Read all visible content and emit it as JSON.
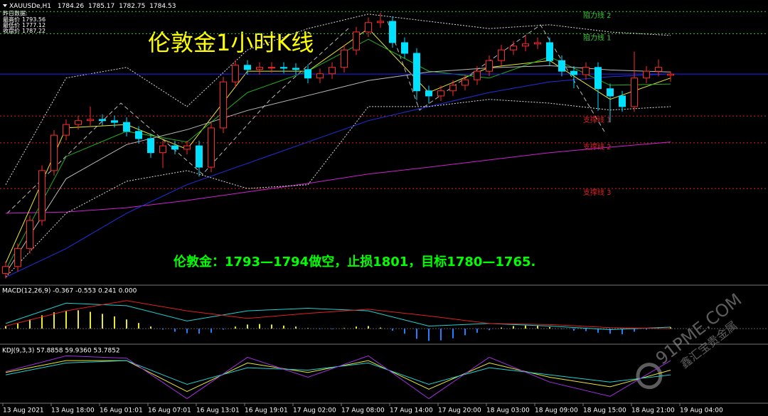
{
  "chart_data": {
    "type": "candlestick",
    "symbol": "XAUUSDe,H1",
    "title": "伦敦金1小时K线",
    "annotation": "伦敦金：1793—1794做空，止损1801，目标1780—1765.",
    "ylim": [
      1735.2,
      1801.9
    ],
    "up_color": "#ff2a2a",
    "down_color": "#00e0ff",
    "open": [
      1737.8,
      1739.4,
      1743.6,
      1750.2,
      1761.9,
      1770.2,
      1772.7,
      1773.6,
      1773.9,
      1773.6,
      1773.2,
      1771.1,
      1769.4,
      1766.1,
      1767.7,
      1766.9,
      1767.7,
      1762.7,
      1771.9,
      1782.7,
      1786.6,
      1785.6,
      1786.1,
      1786.1,
      1785.9,
      1785.6,
      1783.6,
      1784.6,
      1786.1,
      1790.2,
      1794.4,
      1796.6,
      1796.9,
      1791.9,
      1789.4,
      1780.6,
      1779.4,
      1780.6,
      1781.9,
      1783.2,
      1785.2,
      1787.7,
      1790.2,
      1791.1,
      1791.6,
      1791.9,
      1787.7,
      1785.2,
      1784.4,
      1786.1,
      1781.1,
      1779.4,
      1776.9,
      1783.6,
      1785.2,
      1784.26
    ],
    "high": [
      1740.6,
      1744.8,
      1751.4,
      1763.1,
      1771.4,
      1773.9,
      1774.8,
      1776.9,
      1775.1,
      1774.8,
      1774.4,
      1772.3,
      1770.6,
      1768.9,
      1768.9,
      1768.9,
      1768.9,
      1773.1,
      1783.9,
      1787.8,
      1787.8,
      1787.3,
      1787.3,
      1787.3,
      1787.1,
      1786.8,
      1785.8,
      1787.3,
      1791.4,
      1795.6,
      1797.8,
      1798.9,
      1798.1,
      1793.1,
      1790.6,
      1781.8,
      1781.8,
      1783.1,
      1784.4,
      1786.4,
      1788.9,
      1791.4,
      1792.3,
      1793.6,
      1793.1,
      1793.1,
      1788.9,
      1786.4,
      1787.3,
      1787.3,
      1782.3,
      1780.6,
      1789.8,
      1786.4,
      1788.0,
      1785.17
    ],
    "low": [
      1736.6,
      1738.2,
      1742.4,
      1749.0,
      1760.7,
      1769.0,
      1771.5,
      1772.4,
      1772.4,
      1772.0,
      1769.9,
      1768.2,
      1764.9,
      1762.5,
      1765.7,
      1765.7,
      1760.5,
      1761.5,
      1770.7,
      1781.5,
      1784.4,
      1784.4,
      1784.9,
      1784.7,
      1784.4,
      1782.4,
      1782.4,
      1783.4,
      1784.9,
      1789.0,
      1793.2,
      1795.4,
      1790.7,
      1788.2,
      1778.4,
      1777.6,
      1778.2,
      1779.4,
      1780.7,
      1782.0,
      1784.0,
      1786.5,
      1789.0,
      1789.9,
      1790.4,
      1786.5,
      1784.0,
      1781.2,
      1783.2,
      1775.9,
      1773.2,
      1775.7,
      1775.7,
      1782.4,
      1784.0,
      1782.75
    ],
    "close": [
      1739.4,
      1743.6,
      1750.2,
      1761.9,
      1770.2,
      1772.7,
      1773.6,
      1773.9,
      1773.6,
      1773.2,
      1771.1,
      1769.4,
      1766.1,
      1767.7,
      1766.9,
      1767.7,
      1762.7,
      1771.9,
      1782.7,
      1786.6,
      1785.6,
      1786.1,
      1786.1,
      1785.9,
      1785.6,
      1783.6,
      1784.6,
      1786.1,
      1790.2,
      1794.4,
      1796.6,
      1796.9,
      1791.9,
      1789.4,
      1780.6,
      1779.4,
      1780.6,
      1781.9,
      1783.2,
      1785.2,
      1787.7,
      1790.2,
      1791.1,
      1791.6,
      1791.9,
      1787.7,
      1785.2,
      1784.4,
      1786.1,
      1781.1,
      1779.4,
      1776.9,
      1783.6,
      1785.2,
      1786.1,
      1784.53
    ],
    "bid_color": "#2020ff",
    "levels": [
      {
        "label": "阻力线 2",
        "value": 1799.2,
        "color": "#33cc33"
      },
      {
        "label": "阻力线 1",
        "value": 1794.0,
        "color": "#33cc33"
      },
      {
        "label": "支撑线 1",
        "value": 1774.7,
        "color": "#e02020"
      },
      {
        "label": "支撑线 2",
        "value": 1768.4,
        "color": "#e02020"
      },
      {
        "label": "支撑线 3",
        "value": 1757.7,
        "color": "#e02020"
      }
    ],
    "prev_day": {
      "heading": "昨日数据:",
      "items": [
        {
          "label": "最高价",
          "value": 1793.56
        },
        {
          "label": "最低价",
          "value": 1777.12
        },
        {
          "label": "收盘价",
          "value": 1787.22
        }
      ]
    },
    "overlay": {
      "x": [
        0,
        5,
        10,
        15,
        20,
        25,
        30,
        35,
        40,
        45,
        50,
        55
      ],
      "series": [
        {
          "color": "#d020d0",
          "values": [
            1751.9,
            1752.2,
            1753.2,
            1754.9,
            1756.9,
            1758.9,
            1761.1,
            1762.7,
            1764.4,
            1766.1,
            1767.4,
            1768.6
          ]
        },
        {
          "color": "#2030e0",
          "values": [
            1736.9,
            1743.6,
            1751.9,
            1758.6,
            1763.6,
            1768.6,
            1773.6,
            1776.9,
            1780.2,
            1782.7,
            1783.9,
            1784.6
          ]
        },
        {
          "color": "#dddddd",
          "dashed": true,
          "values": [
            1758.6,
            1783.6,
            1786.1,
            1776.9,
            1790.2,
            1795.2,
            1798.6,
            1796.9,
            1795.2,
            1796.1,
            1794.4,
            1793.6
          ]
        },
        {
          "color": "#dddddd",
          "dashed": true,
          "values": [
            1736.9,
            1751.9,
            1759.4,
            1761.9,
            1757.7,
            1758.6,
            1776.9,
            1776.9,
            1778.6,
            1777.7,
            1776.1,
            1776.9
          ]
        },
        {
          "color": "#e8e830",
          "values": [
            1740.2,
            1771.9,
            1772.7,
            1766.9,
            1785.2,
            1785.2,
            1795.2,
            1780.2,
            1786.1,
            1787.7,
            1778.6,
            1783.6
          ]
        },
        {
          "color": "#20b020",
          "values": [
            1738.6,
            1765.2,
            1771.1,
            1768.6,
            1780.2,
            1785.2,
            1792.7,
            1785.2,
            1783.6,
            1788.6,
            1781.9,
            1782.2
          ]
        },
        {
          "color": "#bbbbbb",
          "values": [
            1737.8,
            1760.0,
            1768.0,
            1771.5,
            1776.0,
            1779.5,
            1783.0,
            1785.0,
            1786.0,
            1786.5,
            1785.5,
            1785.0
          ]
        }
      ]
    },
    "macd": {
      "label": "MACD(12,26,9) -0.367 -0.553 0.241 0.000",
      "ylim": [
        -2.5,
        7
      ],
      "pos_color": "#e8e830",
      "neg_color": "#2080ff",
      "histogram": [
        0.5,
        1.0,
        1.8,
        2.6,
        3.2,
        3.5,
        3.6,
        3.3,
        2.9,
        2.4,
        1.8,
        1.1,
        0.4,
        -0.2,
        -0.6,
        -0.9,
        -1.0,
        -0.8,
        -0.2,
        0.4,
        0.8,
        0.9,
        0.8,
        0.6,
        0.4,
        0.1,
        -0.1,
        -0.1,
        0.1,
        0.4,
        0.5,
        0.2,
        -0.4,
        -1.0,
        -2.0,
        -2.4,
        -2.3,
        -1.9,
        -1.3,
        -0.8,
        -0.3,
        0.2,
        0.5,
        0.6,
        0.6,
        0.3,
        -0.1,
        -0.4,
        -0.5,
        -0.8,
        -1.0,
        -1.1,
        -0.6,
        -0.2,
        0.2,
        0.241
      ],
      "series": [
        {
          "color": "#20d0d0",
          "values": [
            1.0,
            5.0,
            4.5,
            1.5,
            3.5,
            4.0,
            3.5,
            0.5,
            1.0,
            0.5,
            -0.2,
            0.3
          ]
        },
        {
          "color": "#e02020",
          "values": [
            0.5,
            3.5,
            5.5,
            3.5,
            2.0,
            3.0,
            3.8,
            2.5,
            1.0,
            0.8,
            0.2,
            0.0
          ]
        }
      ]
    },
    "kdj": {
      "label": "KDJ(9,3,3) 57.8858 59.9360 53.7852",
      "ylim": [
        0,
        100
      ],
      "series": [
        {
          "color": "#e8e830",
          "values": [
            60,
            85,
            85,
            20,
            80,
            60,
            85,
            25,
            80,
            50,
            30,
            65
          ]
        },
        {
          "color": "#20d0d0",
          "values": [
            55,
            80,
            85,
            35,
            70,
            65,
            80,
            35,
            70,
            55,
            40,
            55
          ]
        },
        {
          "color": "#a030e0",
          "values": [
            62,
            95,
            90,
            5,
            92,
            50,
            95,
            5,
            92,
            40,
            10,
            85
          ]
        }
      ]
    },
    "time_labels": [
      "13 Aug 2021",
      "13 Aug 18:00",
      "16 Aug 01:01",
      "16 Aug 07:01",
      "16 Aug 13:01",
      "16 Aug 19:01",
      "17 Aug 02:00",
      "17 Aug 08:00",
      "17 Aug 14:00",
      "17 Aug 20:00",
      "18 Aug 03:00",
      "18 Aug 09:00",
      "18 Aug 15:00",
      "18 Aug 21:00",
      "19 Aug 04:00"
    ],
    "watermark": {
      "site": "91PME.COM",
      "name": "鑫汇宝贵金属"
    }
  }
}
